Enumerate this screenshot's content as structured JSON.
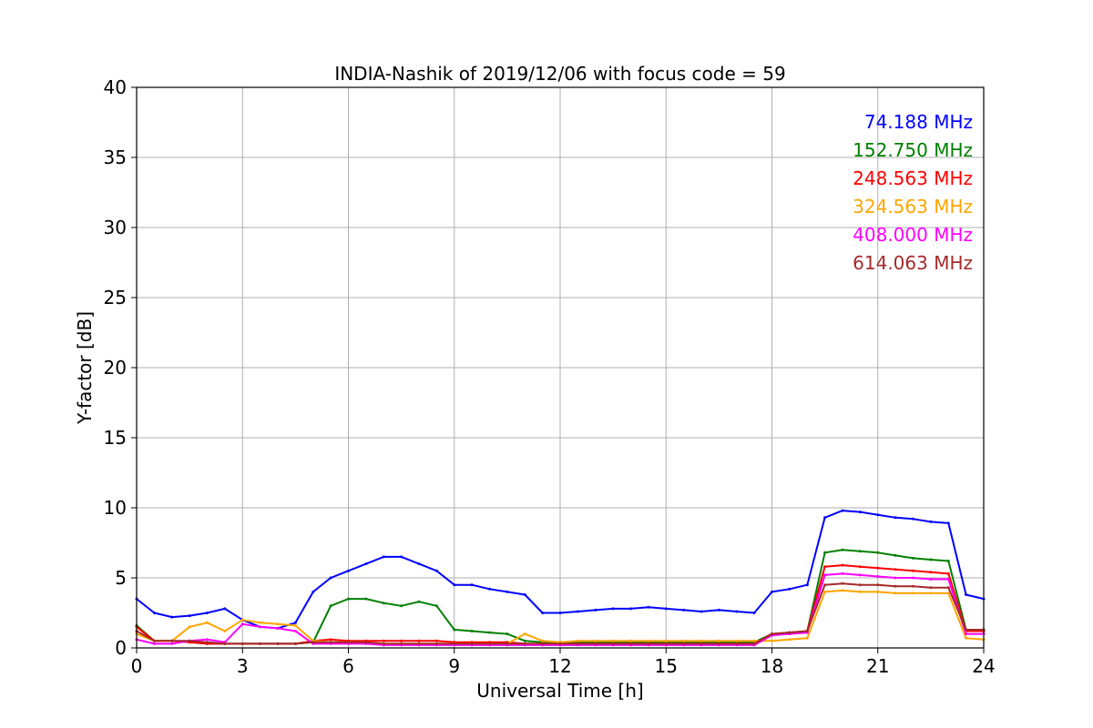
{
  "chart_data": {
    "type": "line",
    "title": "INDIA-Nashik of 2019/12/06 with focus code = 59",
    "xlabel": "Universal Time [h]",
    "ylabel": "Y-factor [dB]",
    "xlim": [
      0,
      24
    ],
    "ylim": [
      0,
      40
    ],
    "xticks": [
      0,
      3,
      6,
      9,
      12,
      15,
      18,
      21,
      24
    ],
    "yticks": [
      0,
      5,
      10,
      15,
      20,
      25,
      30,
      35,
      40
    ],
    "grid": true,
    "legend_position": "top-right",
    "x": [
      0,
      0.5,
      1,
      1.5,
      2,
      2.5,
      3,
      3.5,
      4,
      4.5,
      5,
      5.5,
      6,
      6.5,
      7,
      7.5,
      8,
      8.5,
      9,
      9.5,
      10,
      10.5,
      11,
      11.5,
      12,
      12.5,
      13,
      13.5,
      14,
      14.5,
      15,
      15.5,
      16,
      16.5,
      17,
      17.5,
      18,
      18.5,
      19,
      19.5,
      20,
      20.5,
      21,
      21.5,
      22,
      22.5,
      23,
      23.5,
      24
    ],
    "series": [
      {
        "name": "74.188 MHz",
        "color": "#0000ff",
        "values": [
          3.5,
          2.5,
          2.2,
          2.3,
          2.5,
          2.8,
          2.0,
          1.5,
          1.4,
          1.8,
          4.0,
          5.0,
          5.5,
          6.0,
          6.5,
          6.5,
          6.0,
          5.5,
          4.5,
          4.5,
          4.2,
          4.0,
          3.8,
          2.5,
          2.5,
          2.6,
          2.7,
          2.8,
          2.8,
          2.9,
          2.8,
          2.7,
          2.6,
          2.7,
          2.6,
          2.5,
          4.0,
          4.2,
          4.5,
          9.3,
          9.8,
          9.7,
          9.5,
          9.3,
          9.2,
          9.0,
          8.9,
          3.8,
          3.5
        ]
      },
      {
        "name": "152.750 MHz",
        "color": "#008000",
        "values": [
          1.6,
          0.5,
          0.5,
          0.4,
          0.3,
          0.3,
          0.3,
          0.3,
          0.3,
          0.3,
          0.4,
          3.0,
          3.5,
          3.5,
          3.2,
          3.0,
          3.3,
          3.0,
          1.3,
          1.2,
          1.1,
          1.0,
          0.5,
          0.4,
          0.4,
          0.4,
          0.4,
          0.4,
          0.4,
          0.4,
          0.4,
          0.4,
          0.4,
          0.4,
          0.4,
          0.4,
          1.0,
          1.1,
          1.2,
          6.8,
          7.0,
          6.9,
          6.8,
          6.6,
          6.4,
          6.3,
          6.2,
          1.3,
          1.3
        ]
      },
      {
        "name": "248.563 MHz",
        "color": "#ff0000",
        "values": [
          1.5,
          0.5,
          0.5,
          0.4,
          0.3,
          0.3,
          0.3,
          0.3,
          0.3,
          0.3,
          0.5,
          0.6,
          0.5,
          0.5,
          0.5,
          0.5,
          0.5,
          0.5,
          0.4,
          0.4,
          0.4,
          0.4,
          0.3,
          0.3,
          0.3,
          0.3,
          0.3,
          0.3,
          0.3,
          0.3,
          0.3,
          0.3,
          0.3,
          0.3,
          0.3,
          0.3,
          1.0,
          1.1,
          1.2,
          5.8,
          5.9,
          5.8,
          5.7,
          5.6,
          5.5,
          5.4,
          5.3,
          1.2,
          1.2
        ]
      },
      {
        "name": "324.563 MHz",
        "color": "#ffa500",
        "values": [
          1.0,
          0.5,
          0.5,
          1.5,
          1.8,
          1.2,
          2.0,
          1.8,
          1.7,
          1.6,
          0.5,
          0.4,
          0.4,
          0.4,
          0.3,
          0.3,
          0.3,
          0.3,
          0.3,
          0.3,
          0.3,
          0.3,
          1.0,
          0.5,
          0.4,
          0.5,
          0.5,
          0.5,
          0.5,
          0.5,
          0.5,
          0.5,
          0.5,
          0.5,
          0.5,
          0.5,
          0.5,
          0.6,
          0.7,
          4.0,
          4.1,
          4.0,
          4.0,
          3.9,
          3.9,
          3.9,
          3.9,
          0.7,
          0.6
        ]
      },
      {
        "name": "408.000 MHz",
        "color": "#ff00ff",
        "values": [
          0.6,
          0.3,
          0.3,
          0.5,
          0.6,
          0.4,
          1.7,
          1.5,
          1.4,
          1.2,
          0.3,
          0.3,
          0.3,
          0.3,
          0.2,
          0.2,
          0.2,
          0.2,
          0.2,
          0.2,
          0.2,
          0.2,
          0.2,
          0.2,
          0.2,
          0.2,
          0.2,
          0.2,
          0.2,
          0.2,
          0.2,
          0.2,
          0.2,
          0.2,
          0.2,
          0.2,
          0.9,
          1.0,
          1.1,
          5.2,
          5.3,
          5.2,
          5.1,
          5.0,
          5.0,
          4.9,
          4.9,
          1.0,
          1.0
        ]
      },
      {
        "name": "614.063 MHz",
        "color": "#a52a2a",
        "values": [
          1.2,
          0.5,
          0.5,
          0.5,
          0.4,
          0.3,
          0.3,
          0.3,
          0.3,
          0.3,
          0.4,
          0.4,
          0.4,
          0.4,
          0.3,
          0.3,
          0.3,
          0.3,
          0.3,
          0.3,
          0.3,
          0.3,
          0.3,
          0.3,
          0.3,
          0.3,
          0.3,
          0.3,
          0.3,
          0.3,
          0.3,
          0.3,
          0.3,
          0.3,
          0.3,
          0.3,
          1.0,
          1.1,
          1.2,
          4.5,
          4.6,
          4.5,
          4.5,
          4.4,
          4.4,
          4.3,
          4.3,
          1.3,
          1.3
        ]
      }
    ]
  }
}
